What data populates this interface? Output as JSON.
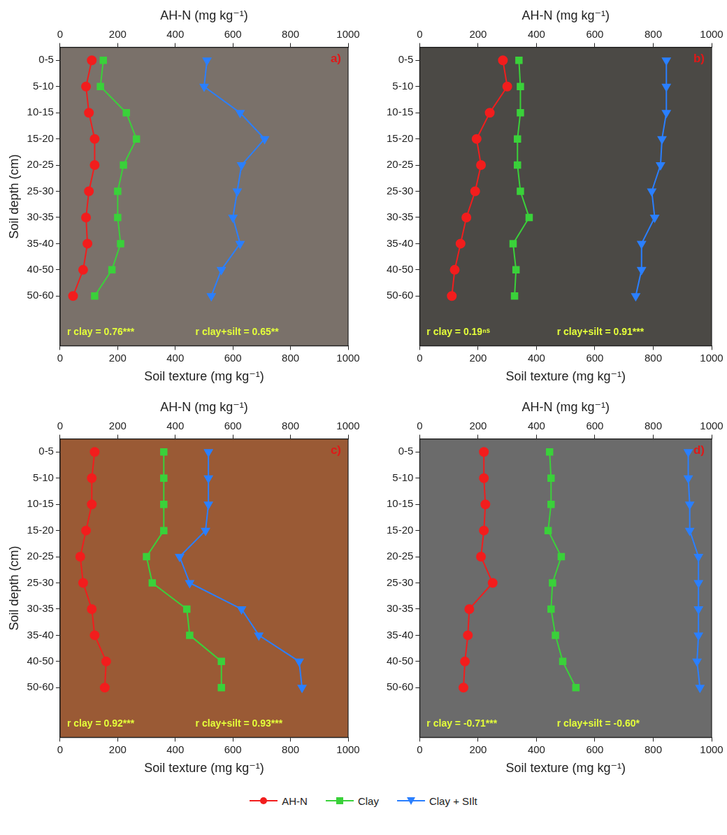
{
  "chart_data": [
    {
      "type": "line",
      "title": "a)",
      "x_label": "Soil texture (mg kg⁻¹)",
      "x2_label": "AH-N (mg kg⁻¹)",
      "y_label": "Soil depth (cm)",
      "categories": [
        "0-5",
        "5-10",
        "10-15",
        "15-20",
        "20-25",
        "25-30",
        "30-35",
        "35-40",
        "40-50",
        "50-60"
      ],
      "xlim": [
        0,
        1000
      ],
      "xticks": [
        0,
        200,
        400,
        600,
        800,
        1000
      ],
      "x2lim": [
        0,
        1000
      ],
      "x2ticks": [
        0,
        200,
        400,
        600,
        800,
        1000
      ],
      "legend": "bottom",
      "annotations": [
        "r clay = 0.76***",
        "r clay+silt = 0.65**"
      ],
      "series": [
        {
          "name": "AH-N",
          "color": "#f21d1d",
          "marker": "circle",
          "values": [
            110,
            90,
            100,
            120,
            120,
            100,
            90,
            95,
            80,
            45
          ]
        },
        {
          "name": "Clay",
          "color": "#3ad13a",
          "marker": "square",
          "values": [
            150,
            140,
            230,
            265,
            220,
            200,
            200,
            210,
            180,
            120
          ]
        },
        {
          "name": "Clay + SIlt",
          "color": "#2a7fff",
          "marker": "triangle-down",
          "values": [
            510,
            500,
            625,
            710,
            630,
            615,
            600,
            625,
            560,
            525
          ]
        }
      ]
    },
    {
      "type": "line",
      "title": "b)",
      "x_label": "Soil texture (mg kg⁻¹)",
      "x2_label": "AH-N (mg kg⁻¹)",
      "categories": [
        "0-5",
        "5-10",
        "10-15",
        "15-20",
        "20-25",
        "25-30",
        "30-35",
        "35-40",
        "40-50",
        "50-60"
      ],
      "xlim": [
        0,
        1000
      ],
      "xticks": [
        0,
        200,
        400,
        600,
        800,
        1000
      ],
      "x2lim": [
        0,
        1000
      ],
      "x2ticks": [
        0,
        200,
        400,
        600,
        800,
        1000
      ],
      "annotations": [
        "r clay = 0.19ⁿˢ",
        "r clay+silt = 0.91***"
      ],
      "series": [
        {
          "name": "AH-N",
          "color": "#f21d1d",
          "marker": "circle",
          "values": [
            285,
            300,
            240,
            195,
            210,
            190,
            160,
            140,
            120,
            110
          ]
        },
        {
          "name": "Clay",
          "color": "#3ad13a",
          "marker": "square",
          "values": [
            340,
            345,
            345,
            335,
            335,
            345,
            375,
            320,
            330,
            325
          ]
        },
        {
          "name": "Clay + SIlt",
          "color": "#2a7fff",
          "marker": "triangle-down",
          "values": [
            845,
            845,
            845,
            830,
            825,
            795,
            805,
            760,
            760,
            740
          ]
        }
      ]
    },
    {
      "type": "line",
      "title": "c)",
      "x_label": "Soil texture (mg kg⁻¹)",
      "x2_label": "AH-N (mg kg⁻¹)",
      "y_label": "Soil depth (cm)",
      "categories": [
        "0-5",
        "5-10",
        "10-15",
        "15-20",
        "20-25",
        "25-30",
        "30-35",
        "35-40",
        "40-50",
        "50-60"
      ],
      "xlim": [
        0,
        1000
      ],
      "xticks": [
        0,
        200,
        400,
        600,
        800,
        1000
      ],
      "x2lim": [
        0,
        1000
      ],
      "x2ticks": [
        0,
        200,
        400,
        600,
        800,
        1000
      ],
      "annotations": [
        "r clay = 0.92***",
        "r clay+silt = 0.93***"
      ],
      "series": [
        {
          "name": "AH-N",
          "color": "#f21d1d",
          "marker": "circle",
          "values": [
            120,
            110,
            110,
            90,
            70,
            80,
            110,
            120,
            160,
            155
          ]
        },
        {
          "name": "Clay",
          "color": "#3ad13a",
          "marker": "square",
          "values": [
            360,
            360,
            360,
            360,
            300,
            320,
            440,
            450,
            560,
            560
          ]
        },
        {
          "name": "Clay + SIlt",
          "color": "#2a7fff",
          "marker": "triangle-down",
          "values": [
            515,
            515,
            515,
            505,
            415,
            450,
            630,
            690,
            830,
            840
          ]
        }
      ]
    },
    {
      "type": "line",
      "title": "d)",
      "x_label": "Soil texture (mg kg⁻¹)",
      "x2_label": "AH-N (mg kg⁻¹)",
      "categories": [
        "0-5",
        "5-10",
        "10-15",
        "15-20",
        "20-25",
        "25-30",
        "30-35",
        "35-40",
        "40-50",
        "50-60"
      ],
      "xlim": [
        0,
        1000
      ],
      "xticks": [
        0,
        200,
        400,
        600,
        800,
        1000
      ],
      "x2lim": [
        0,
        1000
      ],
      "x2ticks": [
        0,
        200,
        400,
        600,
        800,
        1000
      ],
      "annotations": [
        "r clay = -0.71***",
        "r clay+silt = -0.60*"
      ],
      "series": [
        {
          "name": "AH-N",
          "color": "#f21d1d",
          "marker": "circle",
          "values": [
            220,
            220,
            225,
            220,
            210,
            250,
            170,
            165,
            155,
            150
          ]
        },
        {
          "name": "Clay",
          "color": "#3ad13a",
          "marker": "square",
          "values": [
            445,
            450,
            450,
            440,
            485,
            455,
            450,
            465,
            490,
            535
          ]
        },
        {
          "name": "Clay + SIlt",
          "color": "#2a7fff",
          "marker": "triangle-down",
          "values": [
            920,
            920,
            925,
            925,
            955,
            955,
            955,
            955,
            950,
            960
          ]
        }
      ]
    }
  ]
}
